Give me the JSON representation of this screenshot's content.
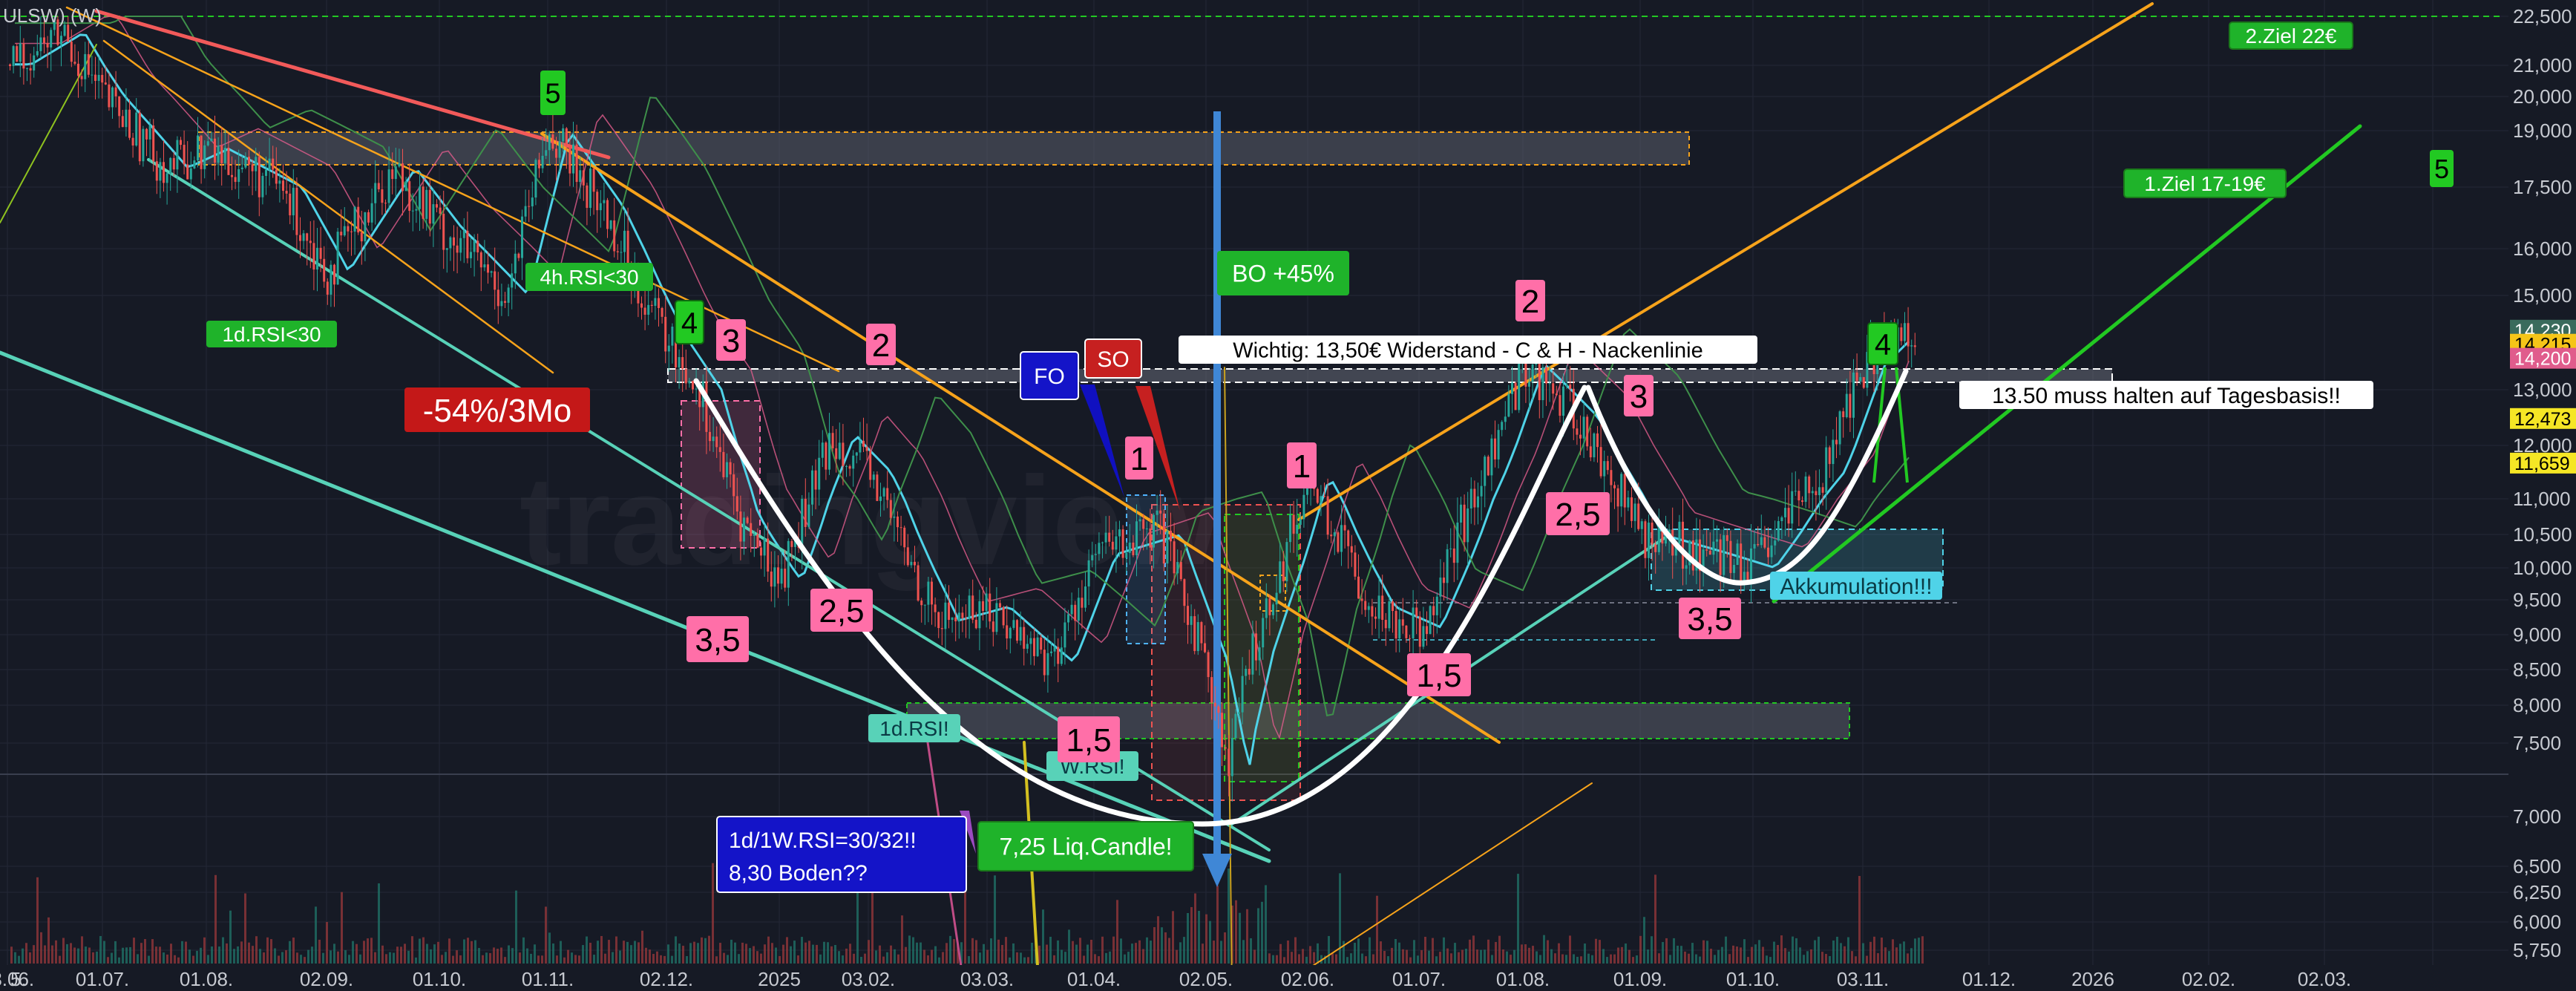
{
  "header": {
    "ticker": "ULSW) (W)"
  },
  "y_axis": {
    "ticks": [
      {
        "label": "22,500",
        "value": 22500
      },
      {
        "label": "21,000",
        "value": 21000
      },
      {
        "label": "20,000",
        "value": 20000
      },
      {
        "label": "19,000",
        "value": 19000
      },
      {
        "label": "17,500",
        "value": 17500
      },
      {
        "label": "16,000",
        "value": 16000
      },
      {
        "label": "15,000",
        "value": 15000
      },
      {
        "label": "13,000",
        "value": 13000
      },
      {
        "label": "12,000",
        "value": 12000
      },
      {
        "label": "11,000",
        "value": 11000
      },
      {
        "label": "10,500",
        "value": 10500
      },
      {
        "label": "10,000",
        "value": 10000
      },
      {
        "label": "9,500",
        "value": 9500
      },
      {
        "label": "9,000",
        "value": 9000
      },
      {
        "label": "8,500",
        "value": 8500
      },
      {
        "label": "8,000",
        "value": 8000
      },
      {
        "label": "7,500",
        "value": 7500
      },
      {
        "label": "7,000",
        "value": 7000
      },
      {
        "label": "6,500",
        "value": 6500
      },
      {
        "label": "6,250",
        "value": 6250
      },
      {
        "label": "6,000",
        "value": 6000
      },
      {
        "label": "5,750",
        "value": 5750
      }
    ],
    "price_badges": [
      {
        "label": "14,230",
        "color": "#3a6b5c",
        "text_color": "#ffffff",
        "value": 14230
      },
      {
        "label": "14,215",
        "color": "#f5c518",
        "text_color": "#000000",
        "value": 14215
      },
      {
        "label": "14,200",
        "color": "#e05c8c",
        "text_color": "#ffffff",
        "value": 14200
      },
      {
        "label": "12,473",
        "color": "#f5e625",
        "text_color": "#000000",
        "value": 12473
      },
      {
        "label": "11,659",
        "color": "#f5e625",
        "text_color": "#000000",
        "value": 11659
      }
    ]
  },
  "x_axis": {
    "ticks": [
      "5.",
      "03.06.",
      "01.07.",
      "01.08.",
      "02.09.",
      "01.10.",
      "01.11.",
      "02.12.",
      "2025",
      "03.02.",
      "03.03.",
      "01.04.",
      "02.05.",
      "02.06.",
      "01.07.",
      "01.08.",
      "01.09.",
      "01.10.",
      "03.11.",
      "01.12.",
      "2026",
      "02.02.",
      "02.03."
    ]
  },
  "annotations": {
    "ziel2": "2.Ziel 22€",
    "ziel1": "1.Ziel 17-19€",
    "wave5_right": "5",
    "wave5_top": "5",
    "rsi_4h": "4h.RSI<30",
    "rsi_1d_top": "1d.RSI<30",
    "drop": "-54%/3Mo",
    "bo": "BO +45%",
    "so": "SO",
    "fo": "FO",
    "widerstand": "Wichtig: 13,50€ Widerstand  - C & H - Nackenlinie",
    "halten": "13.50 muss halten auf Tagesbasis!!",
    "akkumulation": "Akkumulation!!!",
    "rsi_1d": "1d.RSI!",
    "rsi_w": "W.RSI!",
    "rsi_1w_line1": "1d/1W.RSI=30/32!!",
    "rsi_1w_line2": "8,30 Boden??",
    "liq_candle": "7,25 Liq.Candle!",
    "wave_labels": [
      {
        "text": "4",
        "kind": "green"
      },
      {
        "text": "3",
        "kind": "pink"
      },
      {
        "text": "2",
        "kind": "pink"
      },
      {
        "text": "3,5",
        "kind": "pink"
      },
      {
        "text": "2,5",
        "kind": "pink"
      },
      {
        "text": "1,5",
        "kind": "pink"
      },
      {
        "text": "1",
        "kind": "pink"
      },
      {
        "text": "1",
        "kind": "pink"
      },
      {
        "text": "2",
        "kind": "pink"
      },
      {
        "text": "3",
        "kind": "pink"
      },
      {
        "text": "2,5",
        "kind": "pink"
      },
      {
        "text": "1,5",
        "kind": "pink"
      },
      {
        "text": "3,5",
        "kind": "pink"
      },
      {
        "text": "4",
        "kind": "green"
      }
    ]
  },
  "watermark": "tradingview",
  "colors": {
    "background": "#161a25",
    "up": "#26a69a",
    "down": "#ef5350",
    "pink_label": "#ff6fa8",
    "green_label": "#22c922",
    "orange_line": "#f7a31b",
    "teal_line": "#58d2b8",
    "white_curve": "#ffffff",
    "red_line": "#f25a5a"
  },
  "chart_data": {
    "type": "candlestick",
    "title": "",
    "xlabel": "",
    "ylabel": "",
    "y_scale": "log",
    "ylim": [
      5700,
      22800
    ],
    "x_range": [
      "2024-05-01",
      "2026-03-05"
    ],
    "close_path": [
      {
        "x": "2024-05-01",
        "y": 21000
      },
      {
        "x": "2024-05-20",
        "y": 22000
      },
      {
        "x": "2024-06-03",
        "y": 20000
      },
      {
        "x": "2024-06-20",
        "y": 18000
      },
      {
        "x": "2024-07-01",
        "y": 18500
      },
      {
        "x": "2024-07-20",
        "y": 17500
      },
      {
        "x": "2024-08-01",
        "y": 15500
      },
      {
        "x": "2024-08-20",
        "y": 18000
      },
      {
        "x": "2024-09-02",
        "y": 16500
      },
      {
        "x": "2024-09-20",
        "y": 15000
      },
      {
        "x": "2024-10-01",
        "y": 19000
      },
      {
        "x": "2024-10-15",
        "y": 17000
      },
      {
        "x": "2024-11-01",
        "y": 14000
      },
      {
        "x": "2024-11-10",
        "y": 13000
      },
      {
        "x": "2024-11-20",
        "y": 10800
      },
      {
        "x": "2024-12-02",
        "y": 9800
      },
      {
        "x": "2024-12-20",
        "y": 12200
      },
      {
        "x": "2025-01-01",
        "y": 11500
      },
      {
        "x": "2025-01-20",
        "y": 9200
      },
      {
        "x": "2025-02-03",
        "y": 9400
      },
      {
        "x": "2025-02-20",
        "y": 8600
      },
      {
        "x": "2025-03-03",
        "y": 10200
      },
      {
        "x": "2025-03-20",
        "y": 10500
      },
      {
        "x": "2025-04-01",
        "y": 8600
      },
      {
        "x": "2025-04-07",
        "y": 7250
      },
      {
        "x": "2025-04-15",
        "y": 8800
      },
      {
        "x": "2025-05-02",
        "y": 11400
      },
      {
        "x": "2025-05-20",
        "y": 9400
      },
      {
        "x": "2025-06-02",
        "y": 9100
      },
      {
        "x": "2025-06-20",
        "y": 11500
      },
      {
        "x": "2025-07-01",
        "y": 13500
      },
      {
        "x": "2025-07-15",
        "y": 12500
      },
      {
        "x": "2025-08-01",
        "y": 10500
      },
      {
        "x": "2025-08-20",
        "y": 10200
      },
      {
        "x": "2025-09-01",
        "y": 10000
      },
      {
        "x": "2025-09-20",
        "y": 11500
      },
      {
        "x": "2025-10-01",
        "y": 13500
      },
      {
        "x": "2025-10-10",
        "y": 14215
      }
    ],
    "volume": [
      {
        "x": "2024-05-10",
        "v": 0.4
      },
      {
        "x": "2024-06-10",
        "v": 0.3
      },
      {
        "x": "2024-07-10",
        "v": 0.5
      },
      {
        "x": "2024-08-10",
        "v": 0.6
      },
      {
        "x": "2024-09-10",
        "v": 0.4
      },
      {
        "x": "2024-10-05",
        "v": 0.7
      },
      {
        "x": "2024-11-15",
        "v": 0.6
      },
      {
        "x": "2024-12-10",
        "v": 0.5
      },
      {
        "x": "2025-01-15",
        "v": 0.6
      },
      {
        "x": "2025-02-15",
        "v": 0.7
      },
      {
        "x": "2025-03-15",
        "v": 0.8
      },
      {
        "x": "2025-04-07",
        "v": 1.0
      },
      {
        "x": "2025-05-10",
        "v": 0.6
      },
      {
        "x": "2025-06-10",
        "v": 0.7
      },
      {
        "x": "2025-07-05",
        "v": 0.9
      },
      {
        "x": "2025-08-10",
        "v": 0.5
      },
      {
        "x": "2025-09-10",
        "v": 0.6
      },
      {
        "x": "2025-10-05",
        "v": 0.9
      }
    ],
    "levels": [
      {
        "value": 13500,
        "label": "Wichtig: 13,50€ Widerstand  - C & H - Nackenlinie"
      },
      {
        "value": 22500
      },
      {
        "value": 19000
      },
      {
        "value": 18000
      }
    ]
  }
}
